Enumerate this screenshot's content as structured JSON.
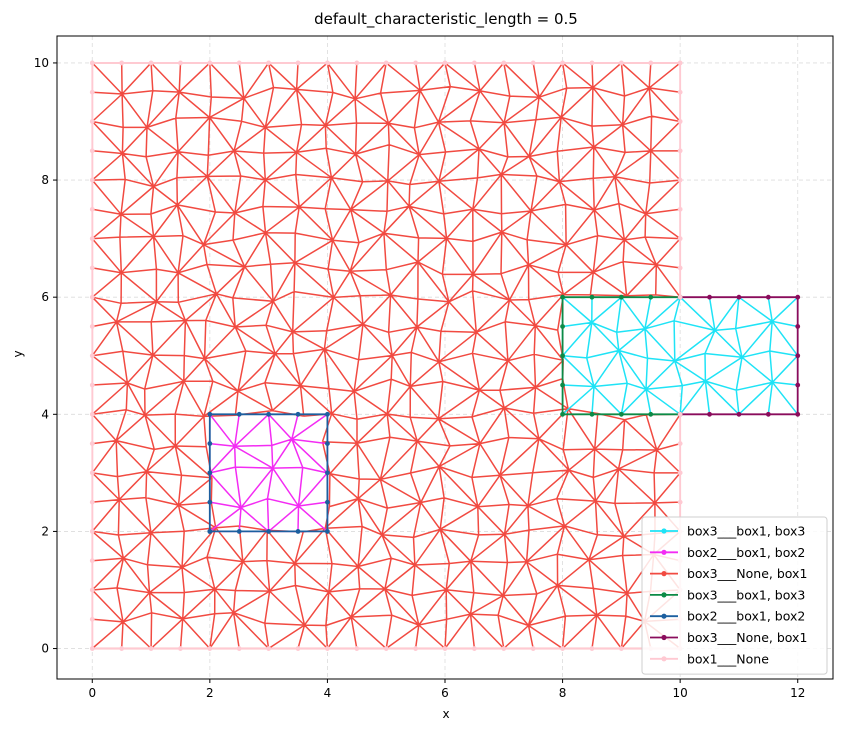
{
  "chart_data": {
    "type": "line",
    "title": "default_characteristic_length = 0.5",
    "xlabel": "x",
    "ylabel": "y",
    "xlim": [
      -0.6,
      12.6
    ],
    "ylim": [
      -0.52,
      10.46
    ],
    "xticks": [
      0,
      2,
      4,
      6,
      8,
      10,
      12
    ],
    "yticks": [
      0,
      2,
      4,
      6,
      8,
      10
    ],
    "grid": true,
    "legend_position": "lower-right",
    "mesh_spacing": 0.5,
    "series": [
      {
        "name": "box3___box1, box3",
        "color": "#1fe3f6",
        "region": [
          8,
          4,
          12,
          6
        ],
        "kind": "mesh"
      },
      {
        "name": "box2___box1, box2",
        "color": "#f32cf3",
        "region": [
          2,
          2,
          4,
          4
        ],
        "kind": "mesh"
      },
      {
        "name": "box3___None, box1",
        "color": "#f14a41",
        "region": [
          0,
          0,
          10,
          10
        ],
        "kind": "mesh",
        "holes": [
          [
            2,
            2,
            4,
            4
          ],
          [
            8,
            4,
            10,
            6
          ]
        ]
      },
      {
        "name": "box3___box1, box3",
        "color": "#0c8a46",
        "kind": "boundary",
        "path": [
          [
            10,
            4
          ],
          [
            8,
            4
          ],
          [
            8,
            6
          ],
          [
            10,
            6
          ]
        ]
      },
      {
        "name": "box2___box1, box2",
        "color": "#1c5f9f",
        "kind": "boundary",
        "path": [
          [
            2,
            2
          ],
          [
            4,
            2
          ],
          [
            4,
            4
          ],
          [
            2,
            4
          ],
          [
            2,
            2
          ]
        ]
      },
      {
        "name": "box3___None, box1",
        "color": "#8a0c5c",
        "kind": "boundary",
        "path": [
          [
            10,
            4
          ],
          [
            12,
            4
          ],
          [
            12,
            6
          ],
          [
            10,
            6
          ]
        ]
      },
      {
        "name": "box1___None",
        "color": "#ffc9d2",
        "kind": "boundary",
        "path": [
          [
            10,
            6
          ],
          [
            10,
            10
          ],
          [
            0,
            10
          ],
          [
            0,
            0
          ],
          [
            10,
            0
          ],
          [
            10,
            4
          ]
        ]
      }
    ]
  }
}
